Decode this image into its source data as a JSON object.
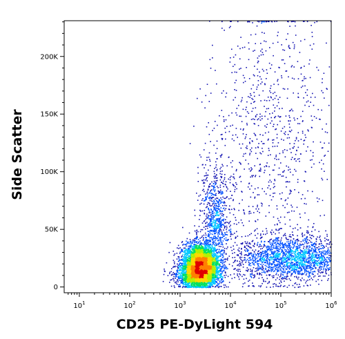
{
  "chart_data": {
    "type": "scatter",
    "subtype": "flow-cytometry-density-dot-plot",
    "xlabel": "CD25 PE-DyLight 594",
    "ylabel": "Side Scatter",
    "x_scale": "log",
    "y_scale": "linear",
    "xlim": [
      5,
      1000000
    ],
    "ylim": [
      -5000,
      231000
    ],
    "x_ticks": [
      {
        "value": 10,
        "base": "10",
        "exp": "1"
      },
      {
        "value": 100,
        "base": "10",
        "exp": "2"
      },
      {
        "value": 1000,
        "base": "10",
        "exp": "3"
      },
      {
        "value": 10000,
        "base": "10",
        "exp": "4"
      },
      {
        "value": 100000,
        "base": "10",
        "exp": "5"
      },
      {
        "value": 1000000,
        "base": "10",
        "exp": "6"
      }
    ],
    "y_ticks": [
      {
        "value": 0,
        "label": "0"
      },
      {
        "value": 50000,
        "label": "50K"
      },
      {
        "value": 100000,
        "label": "100K"
      },
      {
        "value": 150000,
        "label": "150K"
      },
      {
        "value": 200000,
        "label": "200K"
      }
    ],
    "grid": false,
    "legend": "none",
    "density_colors": [
      "#1010b0",
      "#0050ff",
      "#00c8ff",
      "#00e060",
      "#b4f000",
      "#ffd800",
      "#ff8000",
      "#e00000"
    ],
    "clusters": [
      {
        "population": "main",
        "center_x": 2500,
        "center_y": 20000,
        "spread_x_decades": 0.18,
        "spread_y": 9000,
        "weight": 0.45
      },
      {
        "population": "lymph",
        "center_x": 2200,
        "center_y": 10000,
        "spread_x_decades": 0.22,
        "spread_y": 5000,
        "weight": 0.15
      },
      {
        "population": "arm",
        "center_x": 5000,
        "center_y": 60000,
        "spread_x_decades": 0.15,
        "spread_y": 25000,
        "weight": 0.08
      },
      {
        "population": "band",
        "center_x": 150000,
        "center_y": 25000,
        "spread_x_decades": 0.55,
        "spread_y": 10000,
        "weight": 0.22
      },
      {
        "population": "diffuse",
        "center_x": 60000,
        "center_y": 130000,
        "spread_x_decades": 0.6,
        "spread_y": 60000,
        "weight": 0.1
      }
    ],
    "n_points": 9000
  }
}
